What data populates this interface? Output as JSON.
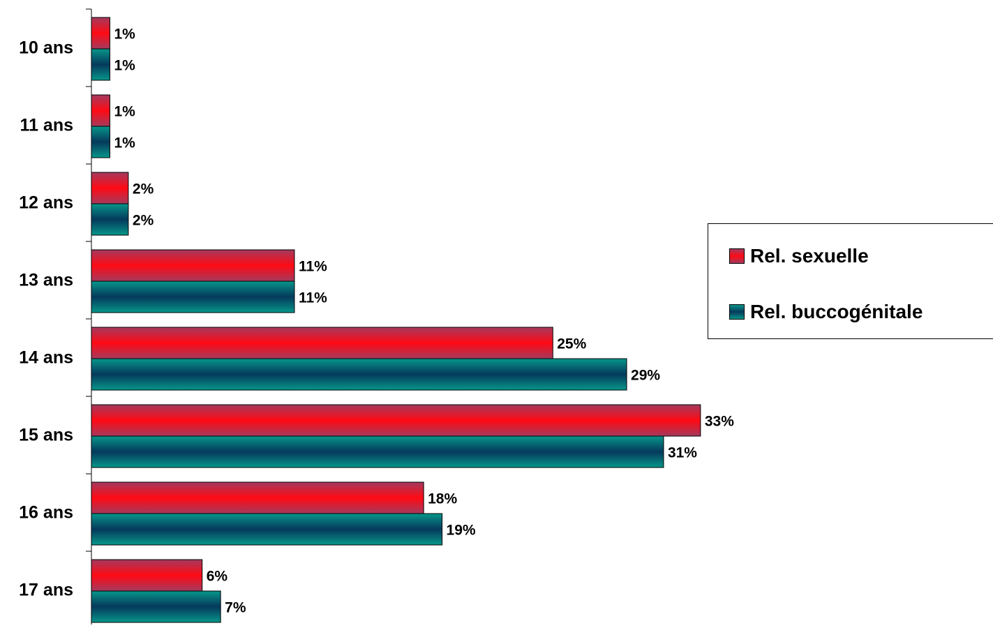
{
  "chart_data": {
    "type": "bar",
    "orientation": "horizontal",
    "categories": [
      "10 ans",
      "11 ans",
      "12 ans",
      "13 ans",
      "14 ans",
      "15 ans",
      "16 ans",
      "17 ans"
    ],
    "series": [
      {
        "name": "Rel. sexuelle",
        "values": [
          1,
          1,
          2,
          11,
          25,
          33,
          18,
          6
        ],
        "labels": [
          "1%",
          "1%",
          "2%",
          "11%",
          "25%",
          "33%",
          "18%",
          "6%"
        ],
        "color": "#ff0a14"
      },
      {
        "name": "Rel. buccogénitale",
        "values": [
          1,
          1,
          2,
          11,
          29,
          31,
          19,
          7
        ],
        "labels": [
          "1%",
          "1%",
          "2%",
          "11%",
          "29%",
          "31%",
          "19%",
          "7%"
        ],
        "color": "#053a5c"
      }
    ],
    "xlim": [
      0,
      33
    ],
    "grid": false,
    "legend_position": "right"
  },
  "legend": {
    "items": [
      {
        "label": "Rel. sexuelle",
        "color": "#ff0a14"
      },
      {
        "label": "Rel. buccogénitale",
        "color": "#053a5c"
      }
    ]
  }
}
